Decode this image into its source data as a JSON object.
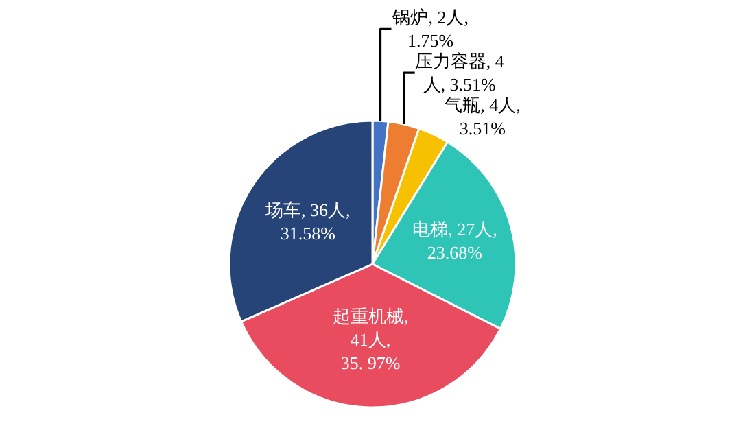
{
  "chart_data": {
    "type": "pie",
    "categories": [
      "锅炉",
      "压力容器",
      "气瓶",
      "电梯",
      "起重机械",
      "场车"
    ],
    "values": [
      2,
      4,
      4,
      27,
      41,
      36
    ],
    "value_labels": [
      ", 2人,\n1.75%",
      ", 4\n人, 3.51%",
      ", 4人,\n3.51%",
      ", 27人,\n23.68%",
      ",\n41人,\n35. 97%",
      ", 36人,\n31.58%"
    ],
    "colors": [
      "#4472c4",
      "#ed7d31",
      "#f5c100",
      "#2ec4b6",
      "#e84c5e",
      "#264478"
    ],
    "legend": false
  }
}
